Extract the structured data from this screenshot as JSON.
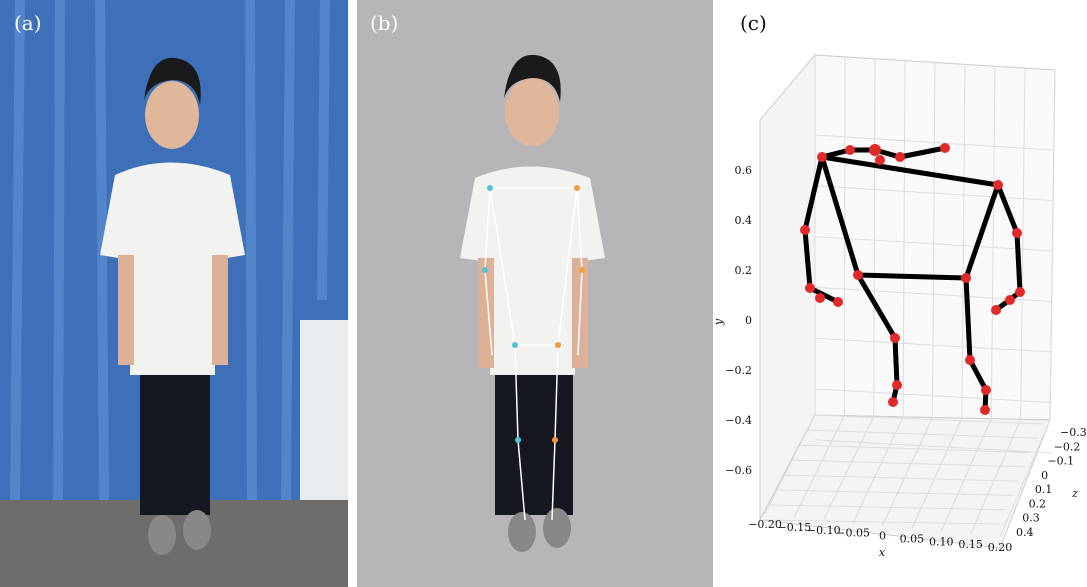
{
  "panels": [
    {
      "label": "(a)"
    },
    {
      "label": "(b)"
    },
    {
      "label": "(c)"
    }
  ],
  "plot": {
    "x_label": "x",
    "y_label": "y",
    "z_label": "z",
    "x_ticks": [
      "−0.20",
      "−0.15",
      "−0.10",
      "−0.05",
      "0",
      "0.05",
      "0.10",
      "0.15",
      "0.20"
    ],
    "y_ticks": [
      "0.6",
      "0.4",
      "0.2",
      "0",
      "−0.2",
      "−0.4",
      "−0.6"
    ],
    "z_ticks": [
      "−0.3",
      "−0.2",
      "−0.1",
      "0",
      "0.1",
      "0.2",
      "0.3",
      "0.4"
    ]
  }
}
